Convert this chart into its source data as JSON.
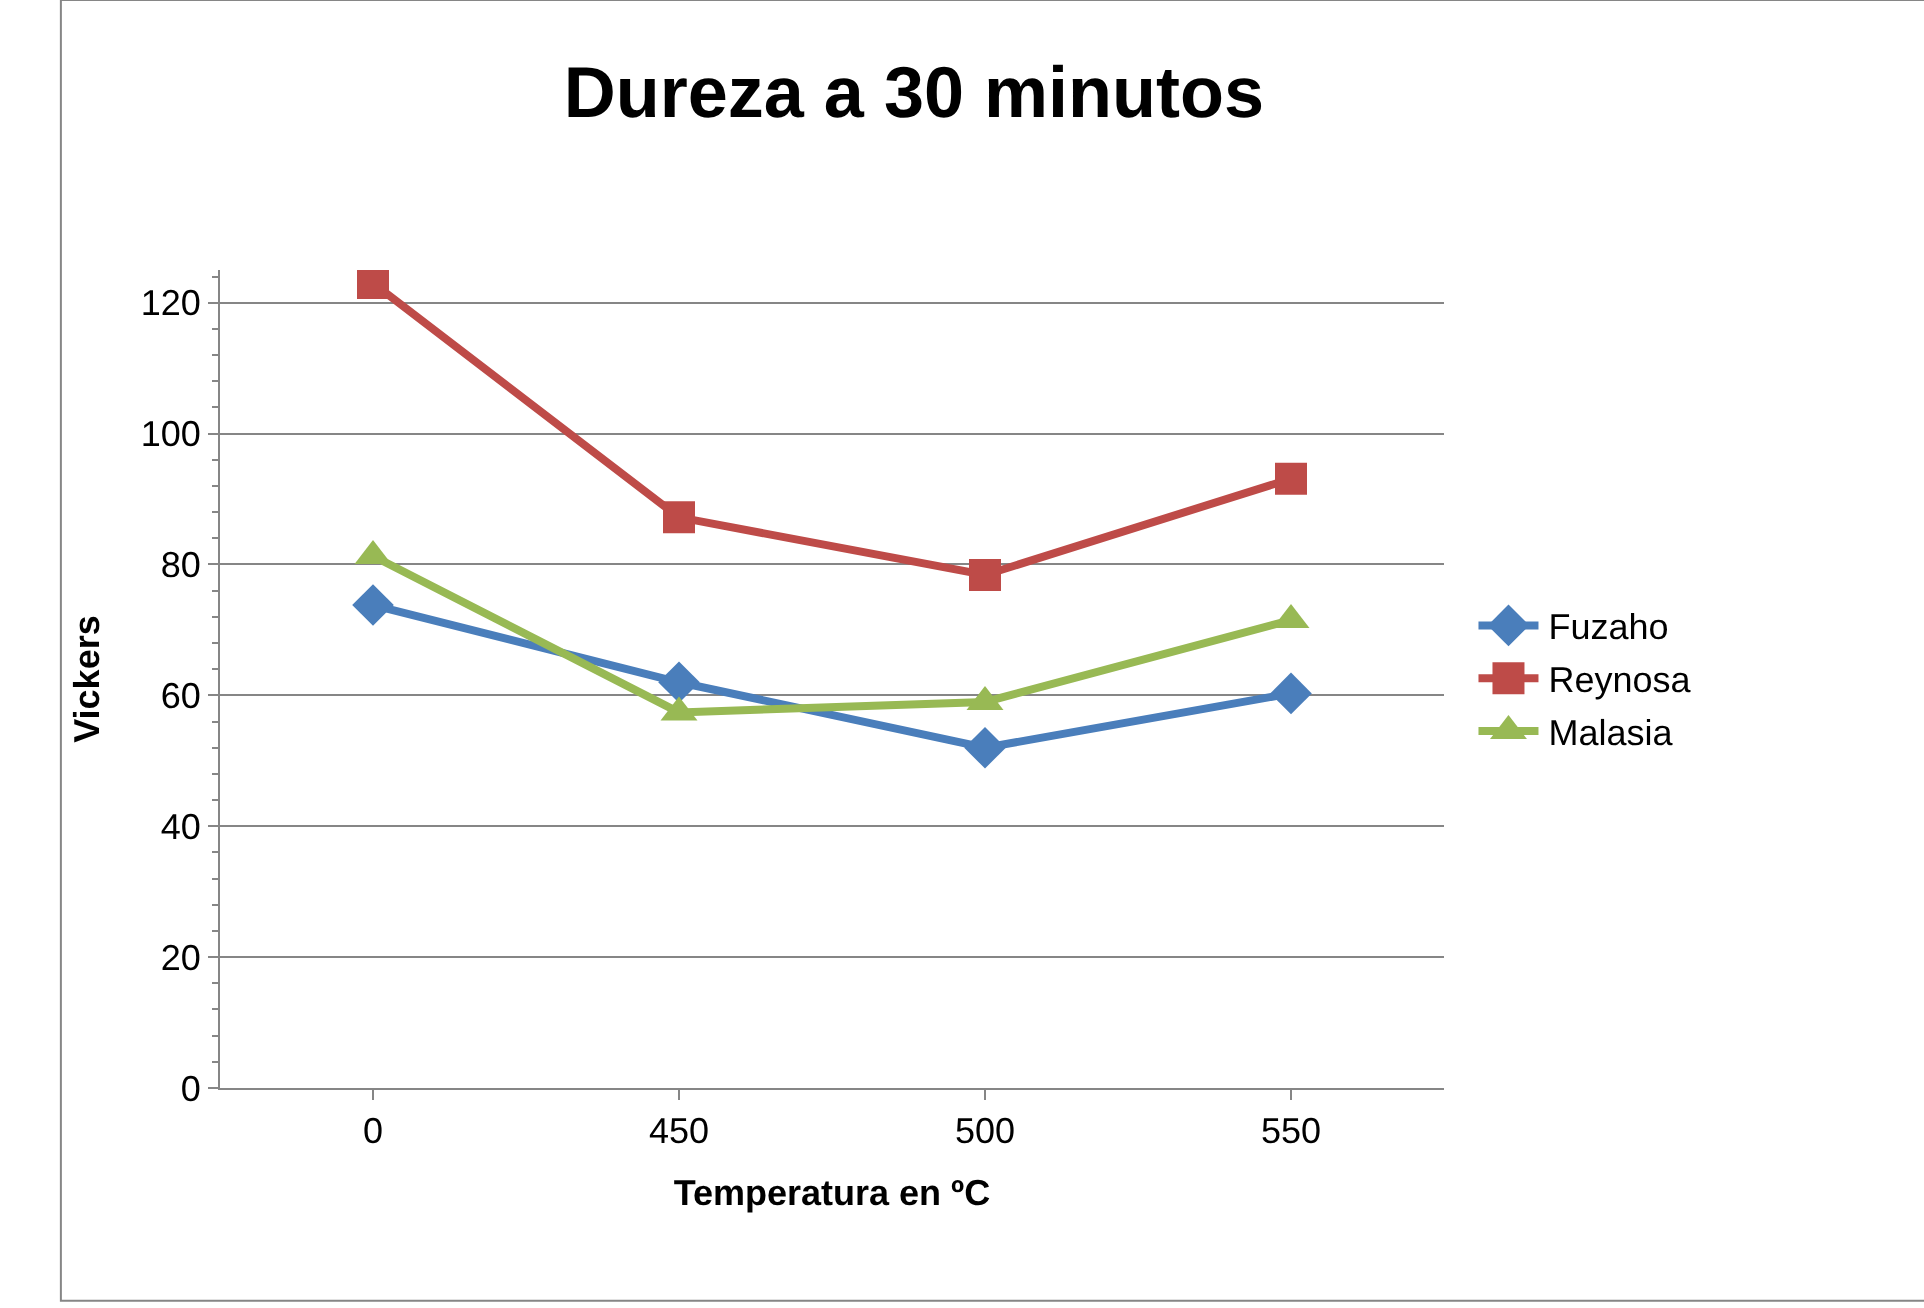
{
  "chart_data": {
    "type": "line",
    "title": "Dureza a 30 minutos",
    "xlabel": "Temperatura en ºC",
    "ylabel": "Vickers",
    "categories": [
      "0",
      "450",
      "500",
      "550"
    ],
    "series": [
      {
        "name": "Fuzaho",
        "color": "#4a7ebb",
        "marker": "diamond",
        "values": [
          73.8,
          62,
          52,
          60.3
        ]
      },
      {
        "name": "Reynosa",
        "color": "#be4b48",
        "marker": "square",
        "values": [
          123,
          87.2,
          78.4,
          93.1
        ]
      },
      {
        "name": "Malasia",
        "color": "#98b954",
        "marker": "triangle",
        "values": [
          81.3,
          57.4,
          59,
          71.5
        ]
      }
    ],
    "ylim": [
      0,
      125
    ],
    "yticks": [
      0,
      20,
      40,
      60,
      80,
      100,
      120
    ],
    "grid": "y",
    "legend": "right",
    "line_style": "solid"
  }
}
